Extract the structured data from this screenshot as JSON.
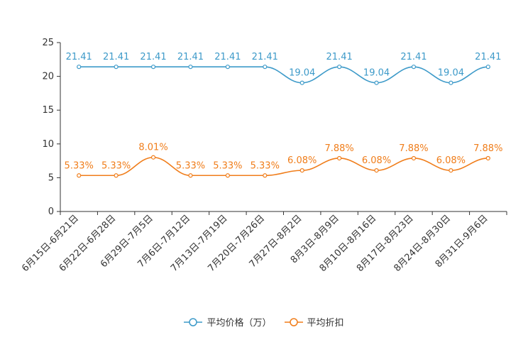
{
  "chart_data": {
    "type": "line",
    "title": "",
    "xlabel": "",
    "ylabel": "",
    "ylim": [
      0,
      25
    ],
    "yticks": [
      0,
      5,
      10,
      15,
      20,
      25
    ],
    "grid": false,
    "legend_position": "bottom",
    "categories": [
      "6月15日-6月21日",
      "6月22日-6月28日",
      "6月29日-7月5日",
      "7月6日-7月12日",
      "7月13日-7月19日",
      "7月20日-7月26日",
      "7月27日-8月2日",
      "8月3日-8月9日",
      "8月10日-8月16日",
      "8月17日-8月23日",
      "8月24日-8月30日",
      "8月31日-9月6日"
    ],
    "series": [
      {
        "name": "平均价格（万）",
        "color": "#3d9ac9",
        "values": [
          21.41,
          21.41,
          21.41,
          21.41,
          21.41,
          21.41,
          19.04,
          21.41,
          19.04,
          21.41,
          19.04,
          21.41
        ],
        "labels": [
          "21.41",
          "21.41",
          "21.41",
          "21.41",
          "21.41",
          "21.41",
          "19.04",
          "21.41",
          "19.04",
          "21.41",
          "19.04",
          "21.41"
        ]
      },
      {
        "name": "平均折扣",
        "color": "#f07d1a",
        "values": [
          5.33,
          5.33,
          8.01,
          5.33,
          5.33,
          5.33,
          6.08,
          7.88,
          6.08,
          7.88,
          6.08,
          7.88
        ],
        "labels": [
          "5.33%",
          "5.33%",
          "8.01%",
          "5.33%",
          "5.33%",
          "5.33%",
          "6.08%",
          "7.88%",
          "6.08%",
          "7.88%",
          "6.08%",
          "7.88%"
        ]
      }
    ]
  }
}
